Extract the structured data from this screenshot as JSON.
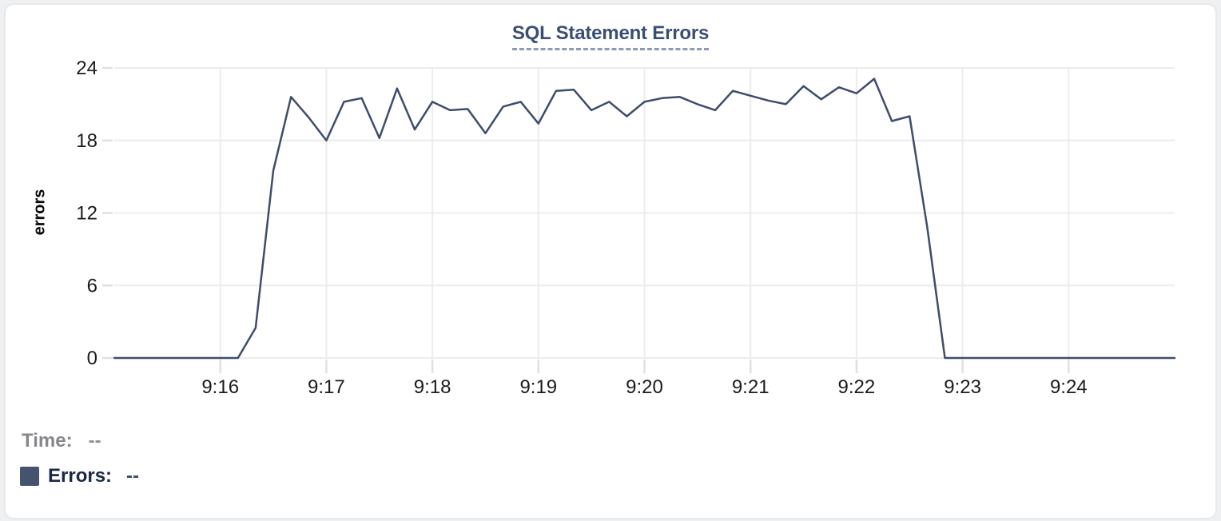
{
  "colors": {
    "line": "#3E4D6C",
    "title": "#3A4E74",
    "title_underline": "#8E9AB8",
    "grid": "#ECECEC",
    "tick_mark": "#E0E0E0",
    "tick_text": "#1B1B1B",
    "time_text": "#85878A",
    "errors_text": "#1A2946",
    "swatch": "#45536E",
    "card_border": "#E7E8EA",
    "background": "#FFFFFF"
  },
  "chart_data": {
    "type": "line",
    "title": "SQL Statement Errors",
    "xlabel": "",
    "ylabel": "errors",
    "ylim": [
      0,
      24
    ],
    "yticks": [
      0,
      6,
      12,
      18,
      24
    ],
    "x_tick_labels": [
      "9:16",
      "9:17",
      "9:18",
      "9:19",
      "9:20",
      "9:21",
      "9:22",
      "9:23",
      "9:24"
    ],
    "grid": true,
    "legend_position": "bottom-left",
    "interval_seconds": 10,
    "series": [
      {
        "name": "Errors",
        "color": "#3E4D6C",
        "x": [
          "9:15:00",
          "9:15:10",
          "9:15:20",
          "9:15:30",
          "9:15:40",
          "9:15:50",
          "9:16:00",
          "9:16:10",
          "9:16:20",
          "9:16:30",
          "9:16:40",
          "9:16:50",
          "9:17:00",
          "9:17:10",
          "9:17:20",
          "9:17:30",
          "9:17:40",
          "9:17:50",
          "9:18:00",
          "9:18:10",
          "9:18:20",
          "9:18:30",
          "9:18:40",
          "9:18:50",
          "9:19:00",
          "9:19:10",
          "9:19:20",
          "9:19:30",
          "9:19:40",
          "9:19:50",
          "9:20:00",
          "9:20:10",
          "9:20:20",
          "9:20:30",
          "9:20:40",
          "9:20:50",
          "9:21:00",
          "9:21:10",
          "9:21:20",
          "9:21:30",
          "9:21:40",
          "9:21:50",
          "9:22:00",
          "9:22:10",
          "9:22:20",
          "9:22:30",
          "9:22:40",
          "9:22:50",
          "9:23:00",
          "9:23:10",
          "9:23:20",
          "9:23:30",
          "9:23:40",
          "9:23:50",
          "9:24:00",
          "9:24:10",
          "9:24:20",
          "9:24:30",
          "9:24:40",
          "9:24:50",
          "9:25:00"
        ],
        "values": [
          0,
          0,
          0,
          0,
          0,
          0,
          0,
          0,
          2.5,
          15.5,
          21.6,
          19.9,
          18,
          21.2,
          21.5,
          18.2,
          22.3,
          18.9,
          21.2,
          20.5,
          20.6,
          18.6,
          20.8,
          21.2,
          19.4,
          22.1,
          22.2,
          20.5,
          21.2,
          20.0,
          21.2,
          21.5,
          21.6,
          21.0,
          20.5,
          22.1,
          21.7,
          21.3,
          21.0,
          22.5,
          21.4,
          22.4,
          21.9,
          23.1,
          19.6,
          20.0,
          10.8,
          0,
          0,
          0,
          0,
          0,
          0,
          0,
          0,
          0,
          0,
          0,
          0,
          0,
          0
        ]
      }
    ]
  },
  "readout": {
    "time_label": "Time:",
    "time_value": "--",
    "errors_label": "Errors:",
    "errors_value": "--"
  }
}
